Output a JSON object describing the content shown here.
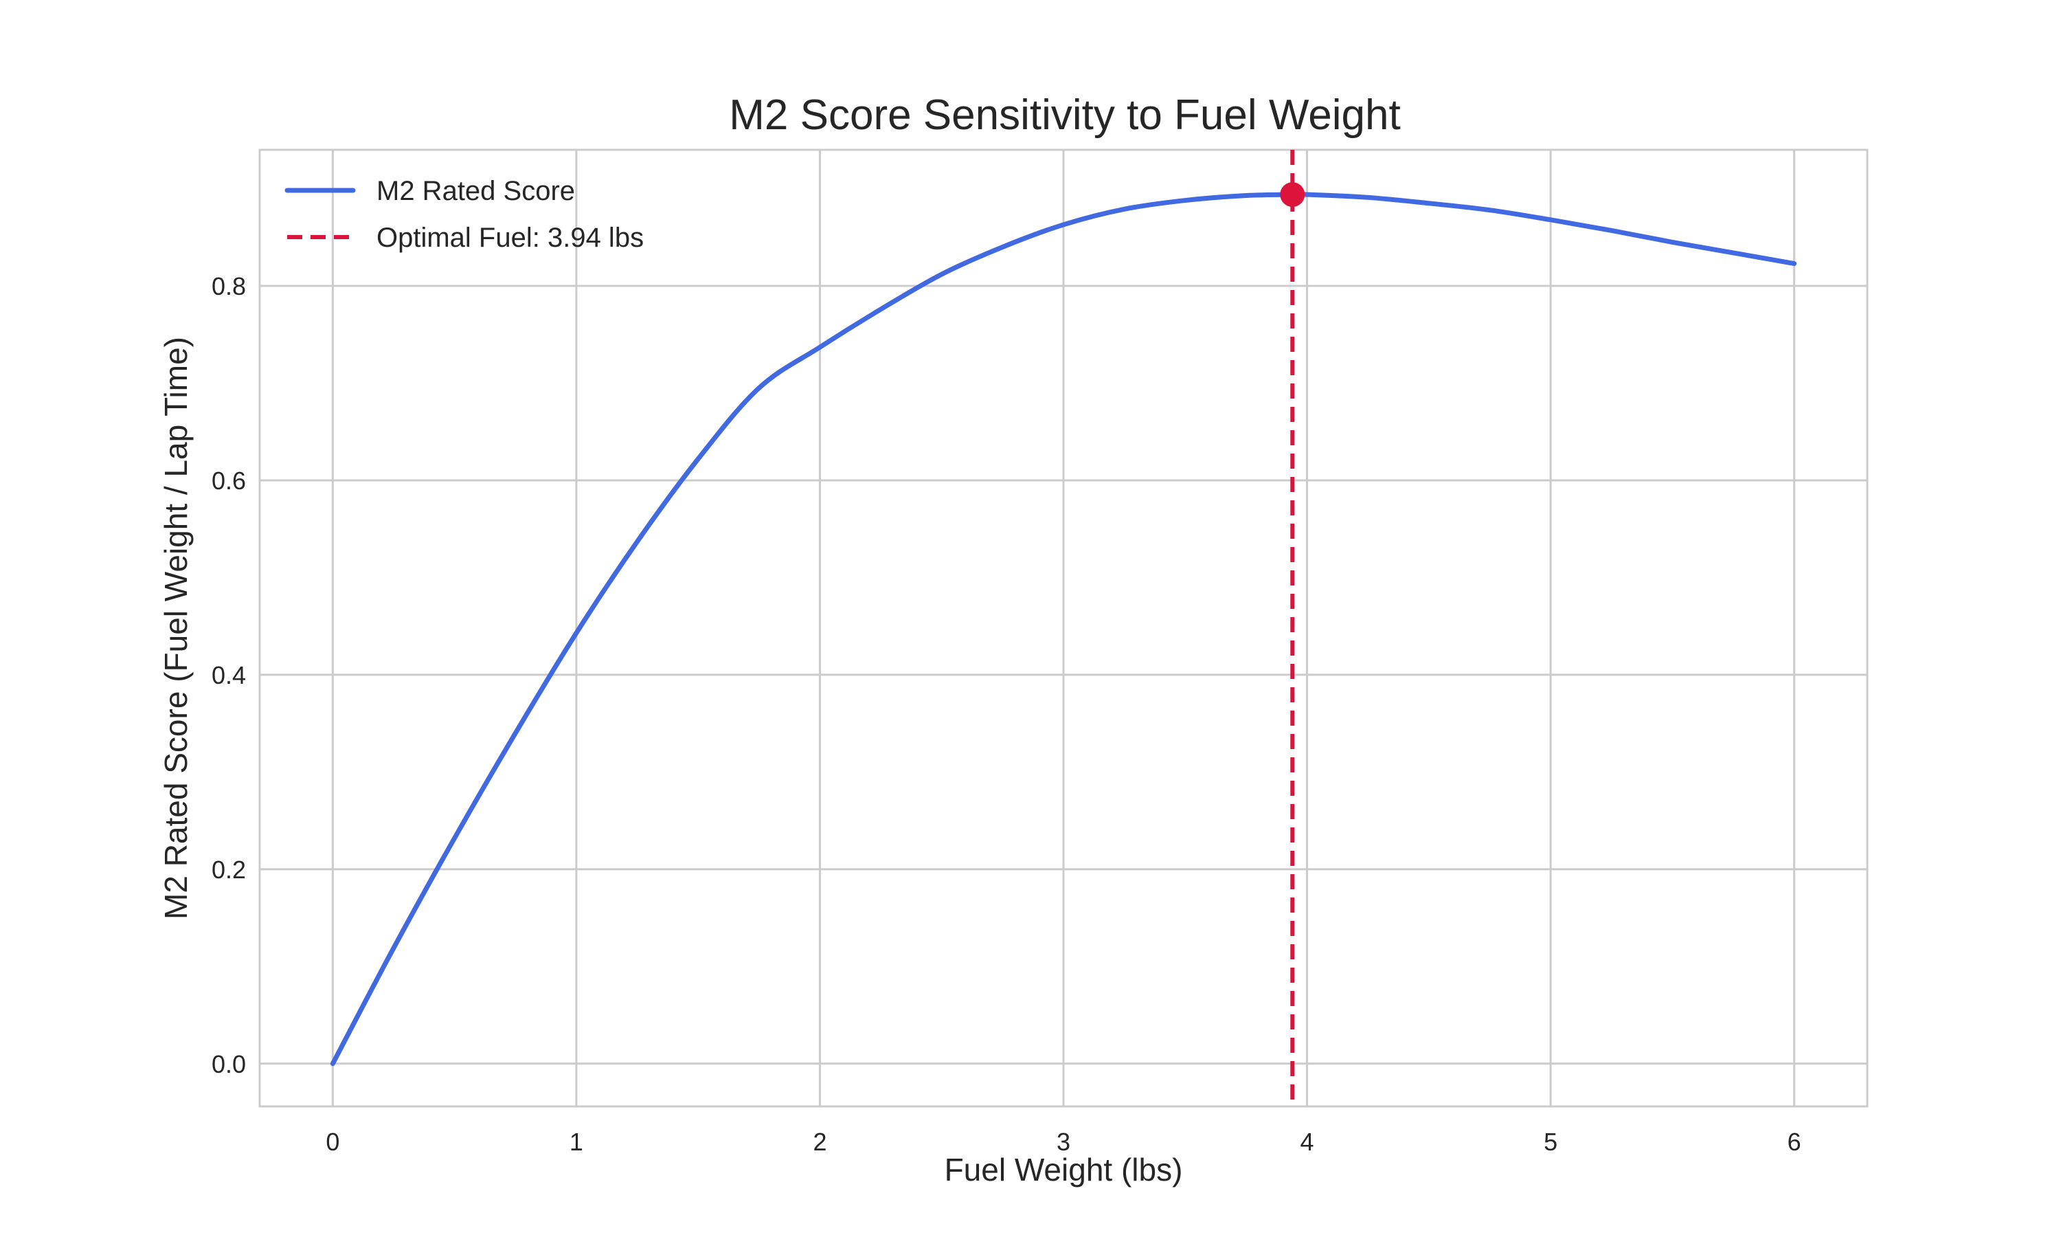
{
  "chart_data": {
    "type": "line",
    "title": "M2 Score Sensitivity to Fuel Weight",
    "xlabel": "Fuel Weight (lbs)",
    "ylabel": "M2 Rated Score (Fuel Weight / Lap Time)",
    "xlim": [
      -0.3,
      6.3
    ],
    "ylim": [
      -0.044,
      0.94
    ],
    "xticks": [
      0,
      1,
      2,
      3,
      4,
      5,
      6
    ],
    "xtick_labels": [
      "0",
      "1",
      "2",
      "3",
      "4",
      "5",
      "6"
    ],
    "yticks": [
      0.0,
      0.2,
      0.4,
      0.6,
      0.8
    ],
    "ytick_labels": [
      "0.0",
      "0.2",
      "0.4",
      "0.6",
      "0.8"
    ],
    "grid": true,
    "legend_position": "top-left",
    "series": [
      {
        "name": "M2 Rated Score",
        "color": "#4169e1",
        "x": [
          0.0,
          0.25,
          0.5,
          0.75,
          1.0,
          1.25,
          1.5,
          1.75,
          2.0,
          2.25,
          2.5,
          2.75,
          3.0,
          3.25,
          3.5,
          3.75,
          3.94,
          4.0,
          4.25,
          4.5,
          4.75,
          5.0,
          5.25,
          5.5,
          5.75,
          6.0
        ],
        "y": [
          0.0,
          0.119,
          0.232,
          0.34,
          0.443,
          0.537,
          0.622,
          0.695,
          0.737,
          0.776,
          0.812,
          0.84,
          0.863,
          0.879,
          0.888,
          0.893,
          0.894,
          0.894,
          0.891,
          0.885,
          0.878,
          0.868,
          0.857,
          0.845,
          0.834,
          0.823
        ]
      }
    ],
    "vline": {
      "name": "Optimal Fuel: 3.94 lbs",
      "x": 3.94,
      "color": "#dc143c",
      "style": "dashed"
    },
    "marker": {
      "x": 3.94,
      "y": 0.894,
      "color": "#dc143c"
    }
  }
}
